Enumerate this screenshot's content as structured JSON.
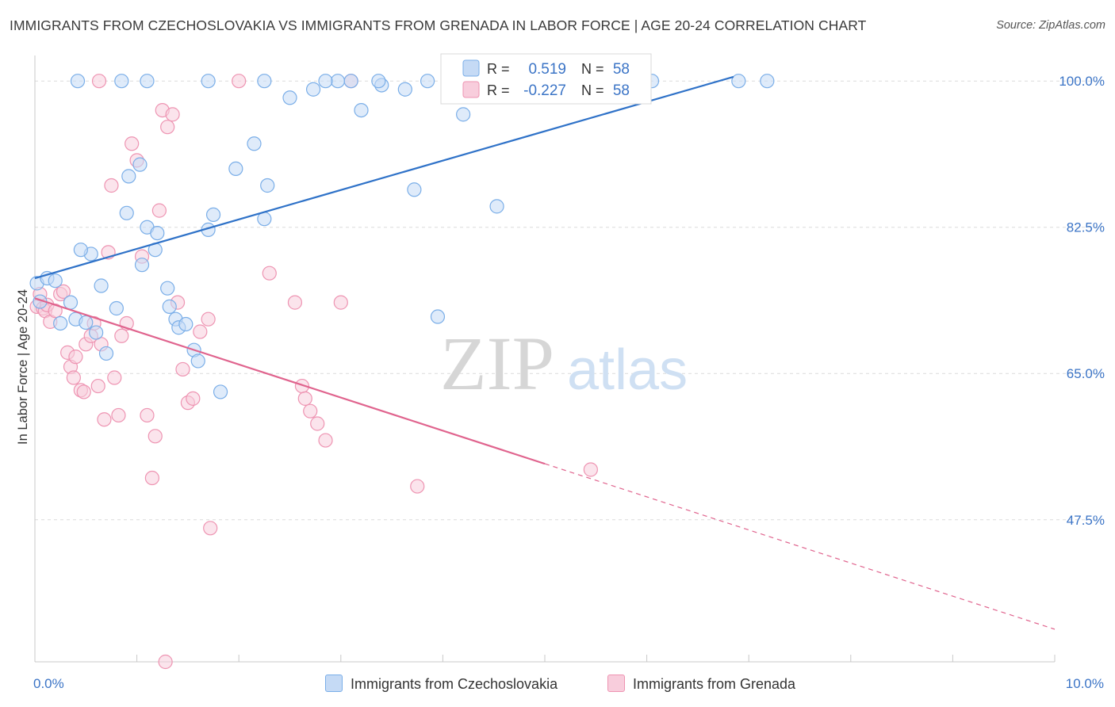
{
  "header": {
    "title": "IMMIGRANTS FROM CZECHOSLOVAKIA VS IMMIGRANTS FROM GRENADA IN LABOR FORCE | AGE 20-24 CORRELATION CHART",
    "source": "Source: ZipAtlas.com"
  },
  "watermark": {
    "zip": "ZIP",
    "atlas": "atlas"
  },
  "colors": {
    "blue": "#7aaee8",
    "blue_fill": "#c5daf5",
    "blue_line": "#2f72c8",
    "pink": "#ee94b2",
    "pink_fill": "#f8cddc",
    "pink_line": "#e0648e",
    "axis_text": "#3b74c6",
    "grid": "#dcdcdc"
  },
  "stats": {
    "blue": {
      "r_label": "R =",
      "r_value": "0.519",
      "n_label": "N =",
      "n_value": "58"
    },
    "pink": {
      "r_label": "R =",
      "r_value": "-0.227",
      "n_label": "N =",
      "n_value": "58"
    }
  },
  "chart_data": {
    "type": "scatter",
    "title": "IMMIGRANTS FROM CZECHOSLOVAKIA VS IMMIGRANTS FROM GRENADA IN LABOR FORCE | AGE 20-24 CORRELATION CHART",
    "ylabel": "In Labor Force | Age 20-24",
    "xlabel": "",
    "xlim": [
      0,
      10
    ],
    "ylim": [
      30.5,
      102.2
    ],
    "x_ticks": [
      0,
      1,
      2,
      3,
      4,
      5,
      6,
      7,
      8,
      9,
      10
    ],
    "x_tick_labels": {
      "left": "0.0%",
      "right": "10.0%"
    },
    "y_ticks": [
      47.5,
      65.0,
      82.5,
      100.0
    ],
    "y_tick_labels": [
      "47.5%",
      "65.0%",
      "82.5%",
      "100.0%"
    ],
    "grid": true,
    "legend_position": "bottom-center",
    "series": [
      {
        "name": "Immigrants from Czechoslovakia",
        "color": "blue",
        "points": [
          [
            0.02,
            75.8
          ],
          [
            0.12,
            76.4
          ],
          [
            0.2,
            76.1
          ],
          [
            0.05,
            73.6
          ],
          [
            0.35,
            73.5
          ],
          [
            0.4,
            71.5
          ],
          [
            0.5,
            71.1
          ],
          [
            0.25,
            71.0
          ],
          [
            0.55,
            79.3
          ],
          [
            0.45,
            79.8
          ],
          [
            0.65,
            75.5
          ],
          [
            0.6,
            69.9
          ],
          [
            0.7,
            67.4
          ],
          [
            0.8,
            72.8
          ],
          [
            0.9,
            84.2
          ],
          [
            0.92,
            88.6
          ],
          [
            1.03,
            90.0
          ],
          [
            1.05,
            78.0
          ],
          [
            1.1,
            82.5
          ],
          [
            1.2,
            81.8
          ],
          [
            1.18,
            79.8
          ],
          [
            1.3,
            75.2
          ],
          [
            1.32,
            73.0
          ],
          [
            1.38,
            71.5
          ],
          [
            1.41,
            70.5
          ],
          [
            1.48,
            70.9
          ],
          [
            1.56,
            67.8
          ],
          [
            1.6,
            66.5
          ],
          [
            1.7,
            82.2
          ],
          [
            1.75,
            84.0
          ],
          [
            1.82,
            62.8
          ],
          [
            1.97,
            89.5
          ],
          [
            2.15,
            92.5
          ],
          [
            2.28,
            87.5
          ],
          [
            2.25,
            83.5
          ],
          [
            2.5,
            98.0
          ],
          [
            2.73,
            99.0
          ],
          [
            2.97,
            100.0
          ],
          [
            3.2,
            96.5
          ],
          [
            3.4,
            99.5
          ],
          [
            3.63,
            99.0
          ],
          [
            3.72,
            87.0
          ],
          [
            3.95,
            71.8
          ],
          [
            4.2,
            96.0
          ],
          [
            4.53,
            85.0
          ],
          [
            5.05,
            100.0
          ],
          [
            6.05,
            100.0
          ],
          [
            6.9,
            100.0
          ],
          [
            7.18,
            100.0
          ],
          [
            3.85,
            100.0
          ],
          [
            3.37,
            100.0
          ],
          [
            3.1,
            100.0
          ],
          [
            2.85,
            100.0
          ],
          [
            2.25,
            100.0
          ],
          [
            1.7,
            100.0
          ],
          [
            0.42,
            100.0
          ],
          [
            0.85,
            100.0
          ],
          [
            1.1,
            100.0
          ]
        ]
      },
      {
        "name": "Immigrants from Grenada",
        "color": "pink",
        "points": [
          [
            0.02,
            73.0
          ],
          [
            0.05,
            74.5
          ],
          [
            0.08,
            72.8
          ],
          [
            0.1,
            72.5
          ],
          [
            0.12,
            73.2
          ],
          [
            0.15,
            71.2
          ],
          [
            0.2,
            72.5
          ],
          [
            0.25,
            74.5
          ],
          [
            0.28,
            74.8
          ],
          [
            0.32,
            67.5
          ],
          [
            0.35,
            65.8
          ],
          [
            0.38,
            64.5
          ],
          [
            0.4,
            67.0
          ],
          [
            0.45,
            63.0
          ],
          [
            0.48,
            62.8
          ],
          [
            0.5,
            68.5
          ],
          [
            0.55,
            69.5
          ],
          [
            0.58,
            71.0
          ],
          [
            0.62,
            63.5
          ],
          [
            0.65,
            68.5
          ],
          [
            0.68,
            59.5
          ],
          [
            0.72,
            79.5
          ],
          [
            0.75,
            87.5
          ],
          [
            0.78,
            64.5
          ],
          [
            0.82,
            60.0
          ],
          [
            0.85,
            69.5
          ],
          [
            0.9,
            71.0
          ],
          [
            0.95,
            92.5
          ],
          [
            1.0,
            90.5
          ],
          [
            1.05,
            79.0
          ],
          [
            1.1,
            60.0
          ],
          [
            1.15,
            52.5
          ],
          [
            1.18,
            57.5
          ],
          [
            1.22,
            84.5
          ],
          [
            1.25,
            96.5
          ],
          [
            1.3,
            94.5
          ],
          [
            1.35,
            96.0
          ],
          [
            1.4,
            73.5
          ],
          [
            1.45,
            65.5
          ],
          [
            1.5,
            61.5
          ],
          [
            1.55,
            62.0
          ],
          [
            1.62,
            70.0
          ],
          [
            1.7,
            71.5
          ],
          [
            1.72,
            46.5
          ],
          [
            2.0,
            100.0
          ],
          [
            2.3,
            77.0
          ],
          [
            2.55,
            73.5
          ],
          [
            2.62,
            63.5
          ],
          [
            2.65,
            62.0
          ],
          [
            2.7,
            60.5
          ],
          [
            2.77,
            59.0
          ],
          [
            2.85,
            57.0
          ],
          [
            3.0,
            73.5
          ],
          [
            3.1,
            100.0
          ],
          [
            3.75,
            51.5
          ],
          [
            5.45,
            53.5
          ],
          [
            0.63,
            100.0
          ],
          [
            1.28,
            30.5
          ]
        ]
      }
    ],
    "trend_lines": [
      {
        "series": "Immigrants from Czechoslovakia",
        "x0": 0.0,
        "y0": 76.4,
        "x1": 6.85,
        "y1": 100.5,
        "extend_dashed_to": null
      },
      {
        "series": "Immigrants from Grenada",
        "x0": 0.0,
        "y0": 74.0,
        "x1": 5.0,
        "y1": 54.2,
        "extend_dashed_to": 10.0
      }
    ]
  }
}
